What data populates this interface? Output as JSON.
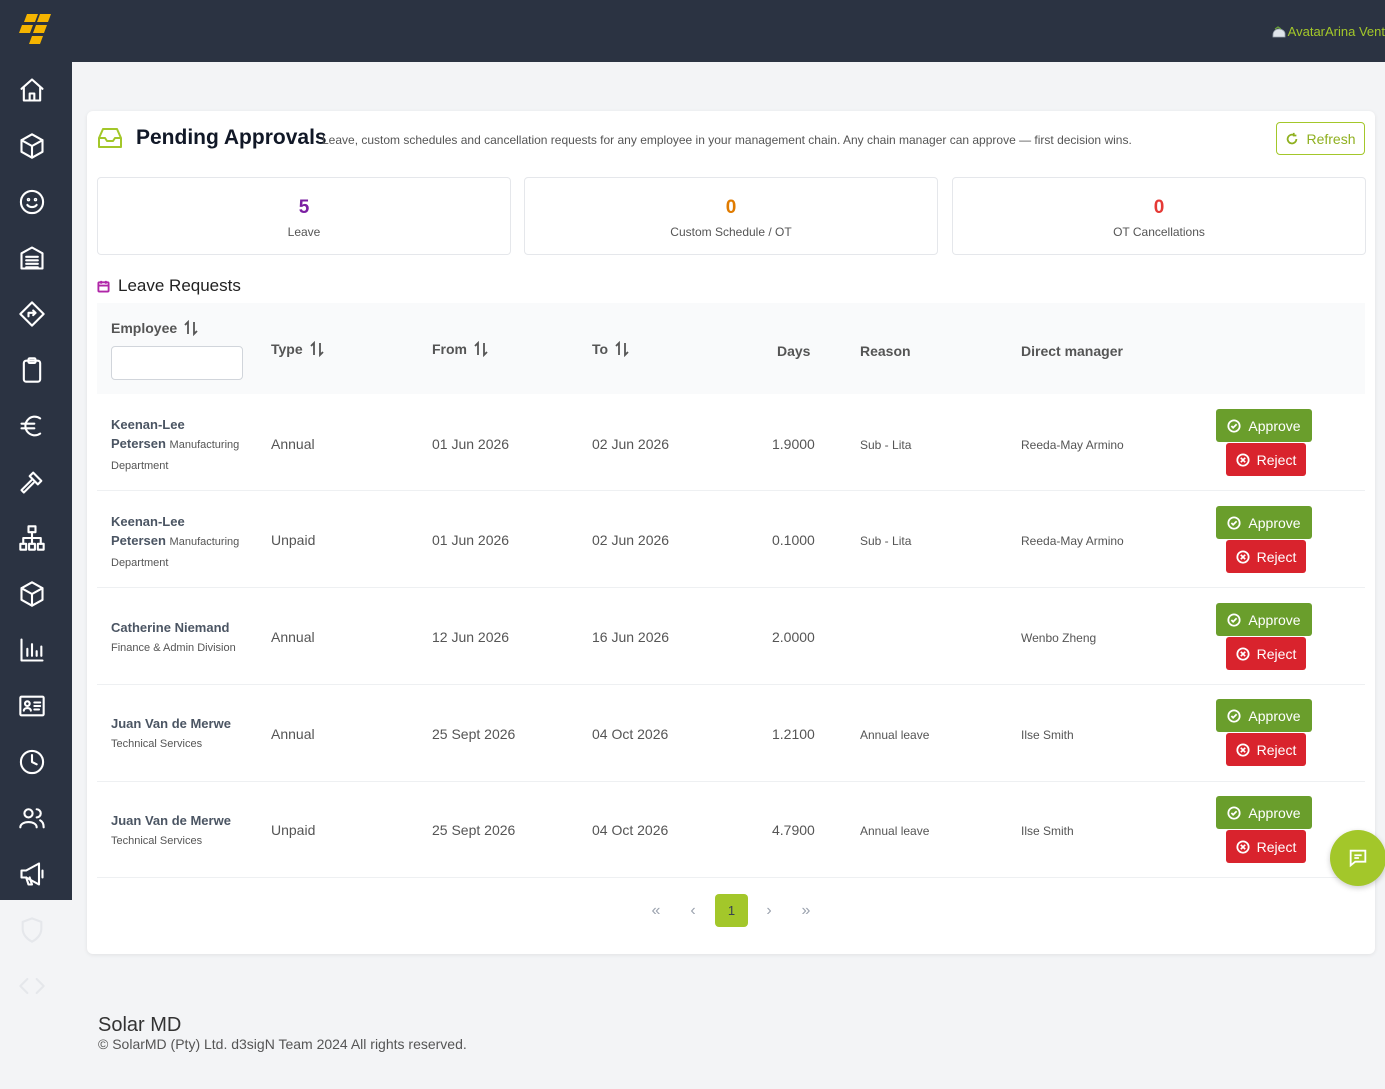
{
  "header": {
    "user_label": "AvatarArina Vent"
  },
  "sidebar": {
    "items": [
      {
        "icon": "home-icon"
      },
      {
        "icon": "box-icon"
      },
      {
        "icon": "smile-icon"
      },
      {
        "icon": "warehouse-icon"
      },
      {
        "icon": "directions-icon"
      },
      {
        "icon": "clipboard-icon"
      },
      {
        "icon": "euro-icon"
      },
      {
        "icon": "hammer-icon"
      },
      {
        "icon": "hierarchy-icon"
      },
      {
        "icon": "package-icon"
      },
      {
        "icon": "bar-chart-icon"
      },
      {
        "icon": "id-card-icon"
      },
      {
        "icon": "clock-icon"
      },
      {
        "icon": "users-icon"
      },
      {
        "icon": "megaphone-icon"
      },
      {
        "icon": "shield-icon"
      },
      {
        "icon": "code-icon"
      }
    ]
  },
  "page": {
    "title": "Pending Approvals",
    "description": "Leave, custom schedules and cancellation requests for any employee in your management chain. Any chain manager can approve — first decision wins.",
    "refresh_label": "Refresh"
  },
  "stats": [
    {
      "value": "5",
      "label": "Leave",
      "color": "#7b1fa2"
    },
    {
      "value": "0",
      "label": "Custom Schedule / OT",
      "color": "#e07b00"
    },
    {
      "value": "0",
      "label": "OT Cancellations",
      "color": "#e53935"
    }
  ],
  "leave_requests": {
    "title": "Leave Requests",
    "columns": {
      "employee": "Employee",
      "type": "Type",
      "from": "From",
      "to": "To",
      "days": "Days",
      "reason": "Reason",
      "manager": "Direct manager"
    },
    "approve_label": "Approve",
    "reject_label": "Reject",
    "rows": [
      {
        "name": "Keenan-Lee Petersen",
        "dept": "Manufacturing Department",
        "type": "Annual",
        "from": "01 Jun 2026",
        "to": "02 Jun 2026",
        "days": "1.9000",
        "reason": "Sub - Lita",
        "manager": "Reeda-May Armino"
      },
      {
        "name": "Keenan-Lee Petersen",
        "dept": "Manufacturing Department",
        "type": "Unpaid",
        "from": "01 Jun 2026",
        "to": "02 Jun 2026",
        "days": "0.1000",
        "reason": "Sub - Lita",
        "manager": "Reeda-May Armino"
      },
      {
        "name": "Catherine Niemand",
        "dept": "Finance & Admin Division",
        "type": "Annual",
        "from": "12 Jun 2026",
        "to": "16 Jun 2026",
        "days": "2.0000",
        "reason": "",
        "manager": "Wenbo Zheng"
      },
      {
        "name": "Juan Van de Merwe",
        "dept": "Technical Services",
        "type": "Annual",
        "from": "25 Sept 2026",
        "to": "04 Oct 2026",
        "days": "1.2100",
        "reason": "Annual leave",
        "manager": "Ilse Smith"
      },
      {
        "name": "Juan Van de Merwe",
        "dept": "Technical Services",
        "type": "Unpaid",
        "from": "25 Sept 2026",
        "to": "04 Oct 2026",
        "days": "4.7900",
        "reason": "Annual leave",
        "manager": "Ilse Smith"
      }
    ]
  },
  "pagination": {
    "first": "«",
    "prev": "‹",
    "current": "1",
    "next": "›",
    "last": "»"
  },
  "footer": {
    "brand": "Solar MD",
    "copyright": "© SolarMD (Pty) Ltd. d3sigN Team 2024 All rights reserved."
  }
}
